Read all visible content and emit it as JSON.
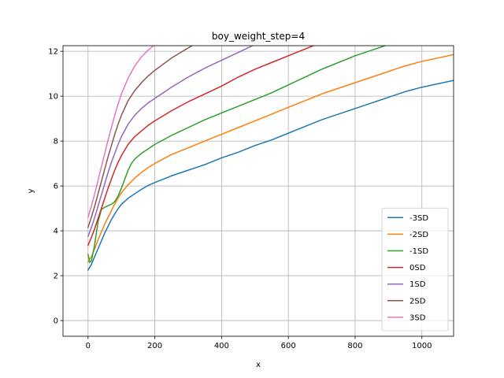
{
  "chart_data": {
    "type": "line",
    "title": "boy_weight_step=4",
    "xlabel": "x",
    "ylabel": "y",
    "xlim": [
      -75,
      1095
    ],
    "ylim": [
      -0.7,
      12.25
    ],
    "xticks": [
      0,
      200,
      400,
      600,
      800,
      1000
    ],
    "yticks": [
      0,
      2,
      4,
      6,
      8,
      10,
      12
    ],
    "grid": true,
    "legend_position": "lower-right",
    "series": [
      {
        "name": "-3SD",
        "color": "#1f77b4",
        "points": [
          [
            0,
            2.25
          ],
          [
            10,
            2.5
          ],
          [
            20,
            2.85
          ],
          [
            30,
            3.2
          ],
          [
            40,
            3.55
          ],
          [
            50,
            3.9
          ],
          [
            60,
            4.2
          ],
          [
            70,
            4.5
          ],
          [
            80,
            4.75
          ],
          [
            90,
            4.98
          ],
          [
            100,
            5.18
          ],
          [
            120,
            5.45
          ],
          [
            140,
            5.65
          ],
          [
            160,
            5.85
          ],
          [
            180,
            6.02
          ],
          [
            200,
            6.15
          ],
          [
            250,
            6.45
          ],
          [
            300,
            6.7
          ],
          [
            350,
            6.95
          ],
          [
            400,
            7.25
          ],
          [
            450,
            7.5
          ],
          [
            500,
            7.8
          ],
          [
            550,
            8.05
          ],
          [
            600,
            8.35
          ],
          [
            650,
            8.65
          ],
          [
            700,
            8.95
          ],
          [
            750,
            9.2
          ],
          [
            800,
            9.45
          ],
          [
            850,
            9.7
          ],
          [
            900,
            9.95
          ],
          [
            950,
            10.2
          ],
          [
            1000,
            10.4
          ],
          [
            1095,
            10.7
          ]
        ]
      },
      {
        "name": "-2SD",
        "color": "#ff7f0e",
        "points": [
          [
            0,
            2.6
          ],
          [
            10,
            2.85
          ],
          [
            20,
            3.2
          ],
          [
            30,
            3.6
          ],
          [
            40,
            3.95
          ],
          [
            50,
            4.3
          ],
          [
            60,
            4.6
          ],
          [
            70,
            4.9
          ],
          [
            80,
            5.2
          ],
          [
            90,
            5.45
          ],
          [
            100,
            5.7
          ],
          [
            120,
            6.05
          ],
          [
            140,
            6.35
          ],
          [
            160,
            6.6
          ],
          [
            180,
            6.82
          ],
          [
            200,
            7.0
          ],
          [
            250,
            7.4
          ],
          [
            300,
            7.7
          ],
          [
            350,
            8.0
          ],
          [
            400,
            8.3
          ],
          [
            450,
            8.6
          ],
          [
            500,
            8.9
          ],
          [
            550,
            9.2
          ],
          [
            600,
            9.5
          ],
          [
            650,
            9.8
          ],
          [
            700,
            10.1
          ],
          [
            750,
            10.35
          ],
          [
            800,
            10.6
          ],
          [
            850,
            10.85
          ],
          [
            900,
            11.1
          ],
          [
            950,
            11.35
          ],
          [
            1000,
            11.55
          ],
          [
            1095,
            11.85
          ]
        ]
      },
      {
        "name": "-1SD",
        "color": "#2ca02c",
        "points": [
          [
            0,
            2.95
          ],
          [
            5,
            2.6
          ],
          [
            10,
            2.65
          ],
          [
            20,
            3.4
          ],
          [
            30,
            4.4
          ],
          [
            40,
            4.95
          ],
          [
            50,
            5.05
          ],
          [
            60,
            5.12
          ],
          [
            70,
            5.18
          ],
          [
            80,
            5.3
          ],
          [
            90,
            5.55
          ],
          [
            100,
            5.9
          ],
          [
            110,
            6.3
          ],
          [
            120,
            6.7
          ],
          [
            130,
            7.0
          ],
          [
            140,
            7.2
          ],
          [
            160,
            7.45
          ],
          [
            180,
            7.65
          ],
          [
            200,
            7.85
          ],
          [
            250,
            8.25
          ],
          [
            300,
            8.6
          ],
          [
            350,
            8.95
          ],
          [
            400,
            9.25
          ],
          [
            450,
            9.55
          ],
          [
            500,
            9.85
          ],
          [
            550,
            10.15
          ],
          [
            600,
            10.5
          ],
          [
            650,
            10.85
          ],
          [
            700,
            11.2
          ],
          [
            750,
            11.5
          ],
          [
            800,
            11.8
          ],
          [
            850,
            12.05
          ],
          [
            900,
            12.3
          ],
          [
            930,
            12.45
          ]
        ]
      },
      {
        "name": "0SD",
        "color": "#d62728",
        "points": [
          [
            0,
            3.35
          ],
          [
            10,
            3.7
          ],
          [
            20,
            4.1
          ],
          [
            30,
            4.55
          ],
          [
            40,
            5.0
          ],
          [
            50,
            5.45
          ],
          [
            60,
            5.9
          ],
          [
            70,
            6.3
          ],
          [
            80,
            6.7
          ],
          [
            90,
            7.05
          ],
          [
            100,
            7.35
          ],
          [
            120,
            7.85
          ],
          [
            140,
            8.2
          ],
          [
            160,
            8.45
          ],
          [
            180,
            8.7
          ],
          [
            200,
            8.9
          ],
          [
            250,
            9.35
          ],
          [
            300,
            9.75
          ],
          [
            350,
            10.1
          ],
          [
            400,
            10.45
          ],
          [
            450,
            10.85
          ],
          [
            500,
            11.2
          ],
          [
            550,
            11.5
          ],
          [
            600,
            11.8
          ],
          [
            650,
            12.1
          ],
          [
            700,
            12.4
          ],
          [
            720,
            12.5
          ]
        ]
      },
      {
        "name": "1SD",
        "color": "#9467bd",
        "points": [
          [
            0,
            3.75
          ],
          [
            10,
            4.15
          ],
          [
            20,
            4.6
          ],
          [
            30,
            5.1
          ],
          [
            40,
            5.6
          ],
          [
            50,
            6.1
          ],
          [
            60,
            6.6
          ],
          [
            70,
            7.05
          ],
          [
            80,
            7.45
          ],
          [
            90,
            7.85
          ],
          [
            100,
            8.2
          ],
          [
            120,
            8.75
          ],
          [
            140,
            9.15
          ],
          [
            160,
            9.45
          ],
          [
            180,
            9.7
          ],
          [
            200,
            9.9
          ],
          [
            250,
            10.4
          ],
          [
            300,
            10.85
          ],
          [
            350,
            11.25
          ],
          [
            400,
            11.6
          ],
          [
            450,
            11.95
          ],
          [
            500,
            12.3
          ],
          [
            530,
            12.5
          ]
        ]
      },
      {
        "name": "2SD",
        "color": "#8c564b",
        "points": [
          [
            0,
            4.15
          ],
          [
            10,
            4.6
          ],
          [
            20,
            5.1
          ],
          [
            30,
            5.65
          ],
          [
            40,
            6.2
          ],
          [
            50,
            6.75
          ],
          [
            60,
            7.3
          ],
          [
            70,
            7.8
          ],
          [
            80,
            8.3
          ],
          [
            90,
            8.75
          ],
          [
            100,
            9.15
          ],
          [
            120,
            9.8
          ],
          [
            140,
            10.25
          ],
          [
            160,
            10.6
          ],
          [
            180,
            10.9
          ],
          [
            200,
            11.15
          ],
          [
            250,
            11.7
          ],
          [
            300,
            12.15
          ],
          [
            330,
            12.4
          ],
          [
            350,
            12.5
          ]
        ]
      },
      {
        "name": "3SD",
        "color": "#e377c2",
        "points": [
          [
            0,
            4.6
          ],
          [
            10,
            5.1
          ],
          [
            20,
            5.65
          ],
          [
            30,
            6.25
          ],
          [
            40,
            6.85
          ],
          [
            50,
            7.45
          ],
          [
            60,
            8.05
          ],
          [
            70,
            8.6
          ],
          [
            80,
            9.15
          ],
          [
            90,
            9.65
          ],
          [
            100,
            10.1
          ],
          [
            120,
            10.8
          ],
          [
            140,
            11.35
          ],
          [
            160,
            11.75
          ],
          [
            180,
            12.05
          ],
          [
            200,
            12.3
          ],
          [
            220,
            12.45
          ]
        ]
      }
    ]
  }
}
